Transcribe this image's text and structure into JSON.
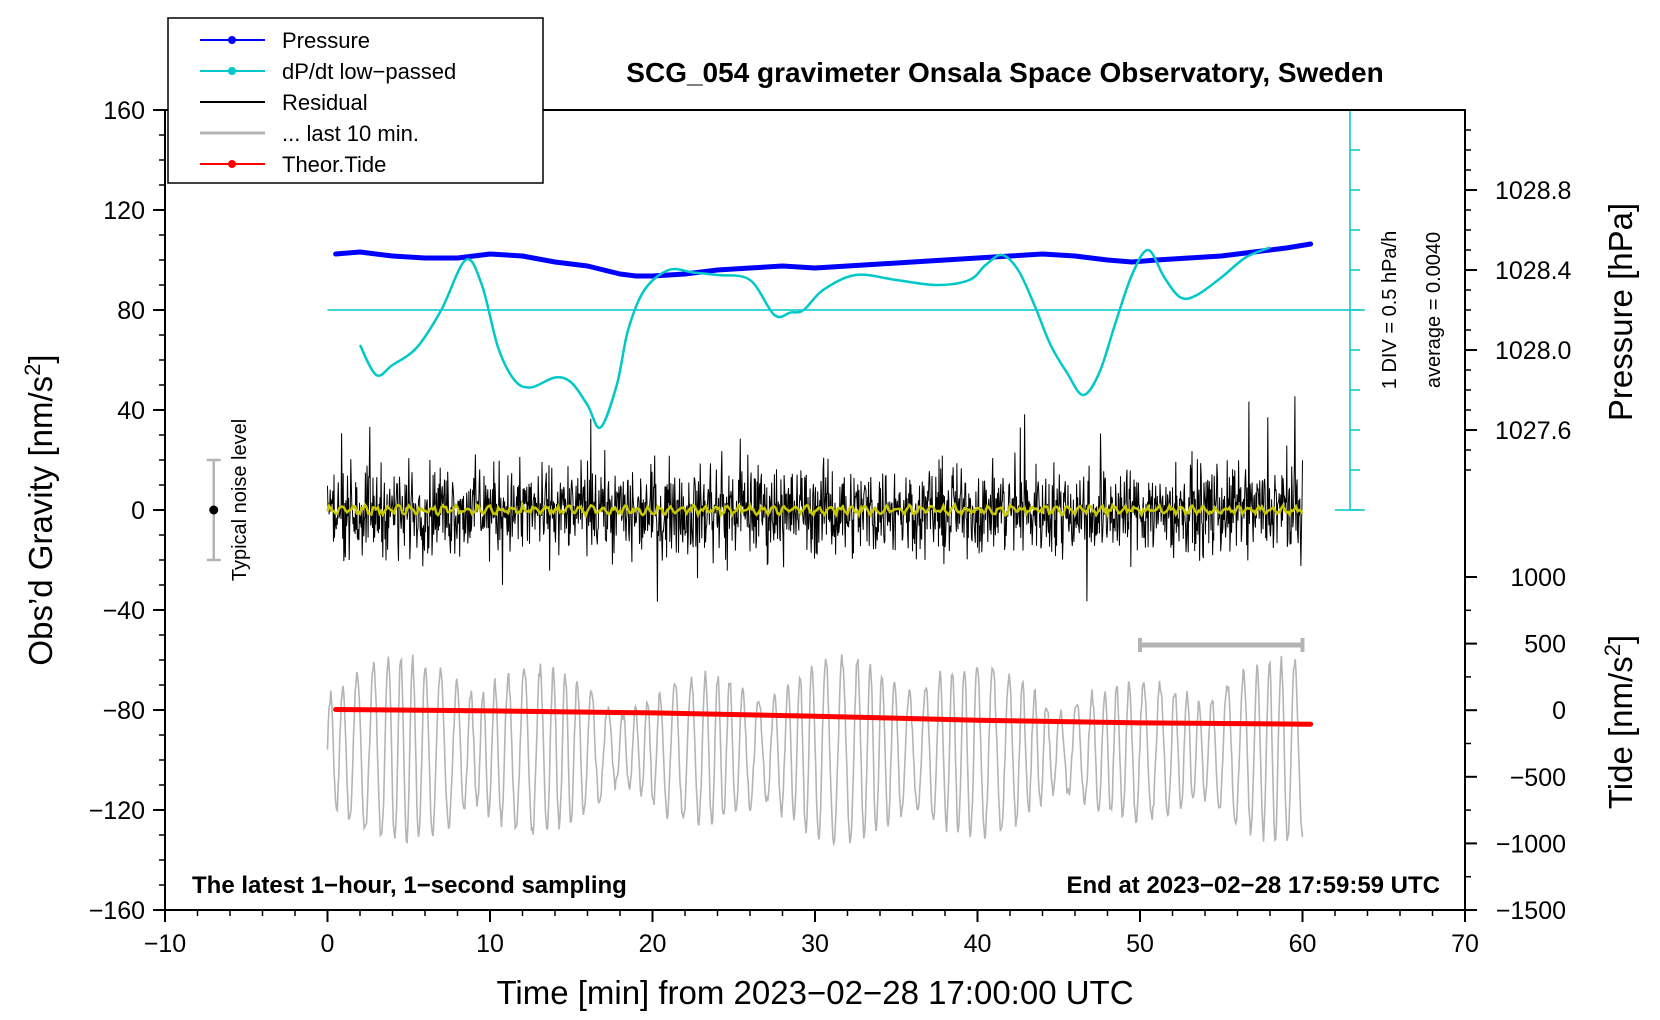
{
  "chart_data": {
    "type": "line",
    "title": "SCG_054 gravimeter Onsala Space Observatory, Sweden",
    "xlabel": "Time [min] from 2023−02−28 17:00:00 UTC",
    "ylabel_left": "Obs’d Gravity [nm/s²]",
    "ylabel_left_main": "Obs’d Gravity [nm/s",
    "ylabel_left_sup": "2",
    "ylabel_left_end": "]",
    "ylabel_right_top": "Pressure [hPa]",
    "ylabel_right_bottom": "Tide [nm/s²]",
    "ylabel_right_bottom_main": "Tide [nm/s",
    "ylabel_right_bottom_sup": "2",
    "ylabel_right_bottom_end": "]",
    "xlim": [
      -10,
      70
    ],
    "ylim_left": [
      -160,
      160
    ],
    "x_ticks": [
      "−10",
      "0",
      "10",
      "20",
      "30",
      "40",
      "50",
      "60",
      "70"
    ],
    "y_ticks_left": [
      "160",
      "120",
      "80",
      "40",
      "0",
      "−40",
      "−80",
      "−120",
      "−160"
    ],
    "y_ticks_pressure": [
      "1028.8",
      "1028.4",
      "1028.0",
      "1027.6"
    ],
    "y_ticks_tide": [
      "1000",
      "500",
      "0",
      "−500",
      "−1000",
      "−1500"
    ],
    "grid": false,
    "legend_position": "top-left",
    "legend": [
      {
        "label": "Pressure",
        "color": "#0000ff",
        "marker": true
      },
      {
        "label": "dP/dt low−passed",
        "color": "#00c8c8",
        "marker": true
      },
      {
        "label": "Residual",
        "color": "#000000",
        "marker": false
      },
      {
        "label": "... last 10 min.",
        "color": "#b4b4b4",
        "marker": false
      },
      {
        "label": "Theor.Tide",
        "color": "#ff0000",
        "marker": true
      }
    ],
    "annotations": {
      "noise_label": "Typical noise level",
      "dpdt_scale": "1 DIV = 0.5 hPa/h",
      "dpdt_average": "average = 0.0040",
      "bottom_left": "The latest 1−hour, 1−second sampling",
      "bottom_right": "End at 2023−02−28 17:59:59 UTC"
    },
    "noise_level": {
      "x": -7,
      "y": 0,
      "range": [
        -20,
        20
      ]
    },
    "dpdt_reference_y": 80,
    "last10_x_range": [
      50,
      60
    ],
    "last10_bar_y": -54,
    "series": [
      {
        "name": "Pressure",
        "color": "#0000ff",
        "axis": "pressure_hPa",
        "x": [
          0.5,
          2,
          4,
          6,
          8,
          10,
          12,
          14,
          16,
          18,
          19,
          20,
          22,
          24,
          26,
          28,
          30,
          32,
          34,
          36,
          38,
          40,
          42,
          44,
          46,
          48,
          49.5,
          51,
          53,
          55,
          57,
          59,
          60.5
        ],
        "values": [
          1028.48,
          1028.49,
          1028.47,
          1028.46,
          1028.46,
          1028.48,
          1028.47,
          1028.44,
          1028.42,
          1028.38,
          1028.37,
          1028.37,
          1028.38,
          1028.4,
          1028.41,
          1028.42,
          1028.41,
          1028.42,
          1028.43,
          1028.44,
          1028.45,
          1028.46,
          1028.47,
          1028.48,
          1028.47,
          1028.45,
          1028.44,
          1028.45,
          1028.46,
          1028.47,
          1028.49,
          1028.51,
          1028.53
        ]
      },
      {
        "name": "dP/dt low−passed",
        "color": "#00c8c8",
        "axis": "left",
        "x": [
          2,
          3,
          4,
          5.5,
          7,
          8.5,
          9.5,
          10.5,
          11.5,
          12.5,
          14,
          15,
          16,
          16.8,
          17.8,
          18.5,
          19.5,
          21,
          22.5,
          24,
          26,
          27.5,
          28.5,
          29.3,
          30.5,
          32.5,
          35,
          37.5,
          39.5,
          40.5,
          41.5,
          42.5,
          43.5,
          44.5,
          45.5,
          46.5,
          47.5,
          48.5,
          49.5,
          50.5,
          51.5,
          52.5,
          53.5,
          55,
          56.5,
          58
        ],
        "values": [
          66,
          54,
          58,
          65,
          80,
          100,
          90,
          65,
          52,
          49,
          53,
          51,
          42,
          33,
          50,
          72,
          88,
          96,
          95,
          94,
          92,
          78,
          79,
          80,
          88,
          94,
          92,
          90,
          92,
          98,
          102,
          96,
          82,
          66,
          55,
          46,
          55,
          75,
          94,
          104,
          93,
          85,
          86,
          93,
          101,
          105
        ]
      },
      {
        "name": "Residual",
        "color": "#000000",
        "axis": "left",
        "x_range": [
          0,
          60
        ],
        "amplitude": 22,
        "style": "dense 1-second noise centred on 0"
      },
      {
        "name": "Residual smoothed",
        "color": "#c8c800",
        "axis": "left",
        "x_range": [
          0,
          60
        ],
        "amplitude": 2
      },
      {
        "name": "... last 10 min.",
        "color": "#b4b4b4",
        "axis": "tide",
        "x_range": [
          0,
          60
        ],
        "amplitude": 600,
        "style": "oscillation around −300 nm/s²"
      },
      {
        "name": "Theor.Tide",
        "color": "#ff0000",
        "axis": "tide",
        "x": [
          0.5,
          10,
          20,
          30,
          40,
          50,
          60.5
        ],
        "values": [
          5,
          -5,
          -20,
          -45,
          -75,
          -95,
          -105
        ]
      }
    ]
  }
}
